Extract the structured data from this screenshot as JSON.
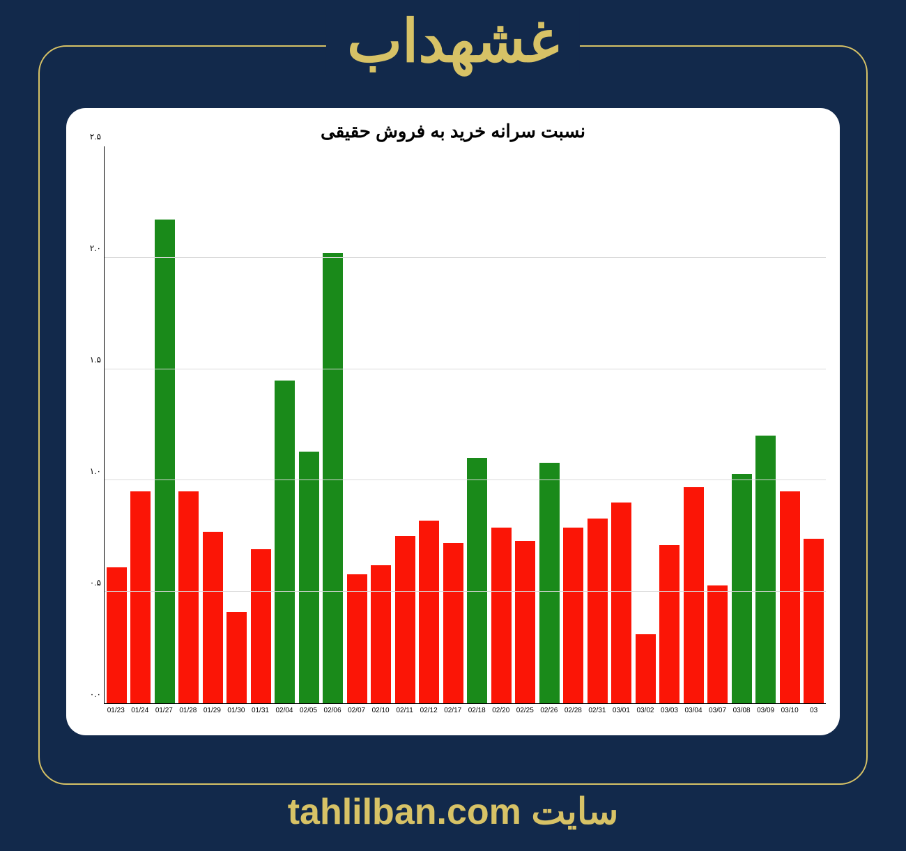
{
  "page": {
    "background_color": "#12294b",
    "accent_color": "#d7c266",
    "frame_border_color": "#d7c266",
    "header_title": "غشهداب",
    "header_color": "#d7c266",
    "header_fontsize": 84,
    "footer_text": "سایت tahlilban.com",
    "footer_color": "#d7c266",
    "footer_fontsize": 52
  },
  "chart": {
    "type": "bar",
    "title": "نسبت سرانه خرید به فروش حقیقی",
    "title_fontsize": 26,
    "title_color": "#000000",
    "background_color": "#ffffff",
    "grid_color": "#d9d9d9",
    "axis_color": "#000000",
    "xlabel_fontsize": 10,
    "ylabel_fontsize": 12,
    "ylim": [
      0.0,
      2.5
    ],
    "ytick_step": 0.5,
    "yticks": [
      "۰.۰",
      "۰.۵",
      "۱.۰",
      "۱.۵",
      "۲.۰",
      "۲.۵"
    ],
    "bar_width": 0.84,
    "color_up": "#1a8a1a",
    "color_down": "#fb1506",
    "categories": [
      "01/23",
      "01/24",
      "01/27",
      "01/28",
      "01/29",
      "01/30",
      "01/31",
      "02/04",
      "02/05",
      "02/06",
      "02/07",
      "02/10",
      "02/11",
      "02/12",
      "02/17",
      "02/18",
      "02/20",
      "02/25",
      "02/26",
      "02/28",
      "02/31",
      "03/01",
      "03/02",
      "03/03",
      "03/04",
      "03/07",
      "03/08",
      "03/09",
      "03/10",
      "03"
    ],
    "values": [
      0.61,
      0.95,
      2.17,
      0.95,
      0.77,
      0.41,
      0.69,
      1.45,
      1.13,
      2.02,
      0.58,
      0.62,
      0.75,
      0.82,
      0.72,
      1.1,
      0.79,
      0.73,
      1.08,
      0.79,
      0.83,
      0.9,
      0.31,
      0.71,
      0.97,
      0.53,
      1.03,
      1.2,
      0.95,
      0.74
    ],
    "bar_colors": [
      "#fb1506",
      "#fb1506",
      "#1a8a1a",
      "#fb1506",
      "#fb1506",
      "#fb1506",
      "#fb1506",
      "#1a8a1a",
      "#1a8a1a",
      "#1a8a1a",
      "#fb1506",
      "#fb1506",
      "#fb1506",
      "#fb1506",
      "#fb1506",
      "#1a8a1a",
      "#fb1506",
      "#fb1506",
      "#1a8a1a",
      "#fb1506",
      "#fb1506",
      "#fb1506",
      "#fb1506",
      "#fb1506",
      "#fb1506",
      "#fb1506",
      "#1a8a1a",
      "#1a8a1a",
      "#fb1506",
      "#fb1506"
    ]
  }
}
